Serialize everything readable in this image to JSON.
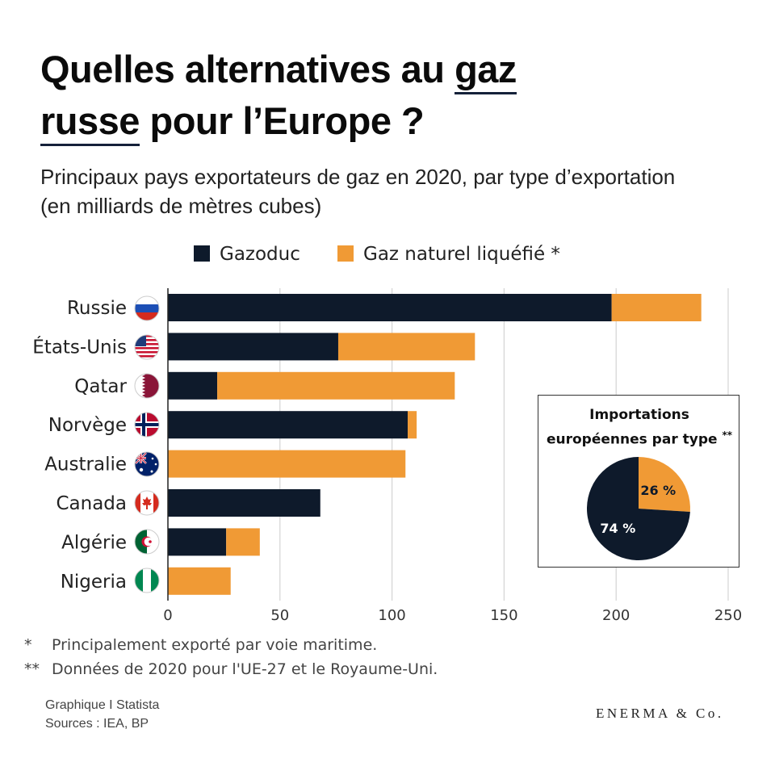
{
  "title": {
    "part1": "Quelles alternatives au ",
    "highlight1": "gaz",
    "highlight2": "russe",
    "part2": " pour l’Europe ?"
  },
  "subtitle": "Principaux pays exportateurs de gaz en 2020, par type d’exportation (en milliards de mètres cubes)",
  "chart_data": {
    "type": "bar",
    "orientation": "horizontal",
    "stacked": true,
    "categories": [
      "Russie",
      "États-Unis",
      "Qatar",
      "Norvège",
      "Australie",
      "Canada",
      "Algérie",
      "Nigeria"
    ],
    "series": [
      {
        "name": "Gazoduc",
        "color": "#0e1a2b",
        "values": [
          198,
          76,
          22,
          107,
          0,
          68,
          26,
          0
        ]
      },
      {
        "name": "Gaz naturel liquéfié *",
        "color": "#f09a35",
        "values": [
          40,
          61,
          106,
          4,
          106,
          0,
          15,
          28
        ]
      }
    ],
    "xlim": [
      0,
      250
    ],
    "xticks": [
      0,
      50,
      100,
      150,
      200,
      250
    ],
    "xlabel": "",
    "ylabel": "",
    "grid": "vertical",
    "legend": "top-center",
    "inset": {
      "type": "pie",
      "title": [
        "Importations",
        "européennes par type"
      ],
      "title_mark": "**",
      "slices": [
        {
          "label": "26 %",
          "value": 26,
          "color": "#f09a35"
        },
        {
          "label": "74 %",
          "value": 74,
          "color": "#0e1a2b"
        }
      ]
    }
  },
  "flags": [
    {
      "country": "Russie",
      "icon": "russia-flag-icon"
    },
    {
      "country": "États-Unis",
      "icon": "usa-flag-icon"
    },
    {
      "country": "Qatar",
      "icon": "qatar-flag-icon"
    },
    {
      "country": "Norvège",
      "icon": "norway-flag-icon"
    },
    {
      "country": "Australie",
      "icon": "australia-flag-icon"
    },
    {
      "country": "Canada",
      "icon": "canada-flag-icon"
    },
    {
      "country": "Algérie",
      "icon": "algeria-flag-icon"
    },
    {
      "country": "Nigeria",
      "icon": "nigeria-flag-icon"
    }
  ],
  "notes": {
    "note1_mark": "*",
    "note1": "Principalement exporté par voie maritime.",
    "note2_mark": "**",
    "note2": "Données de 2020 pour l'UE-27 et le Royaume-Uni."
  },
  "credit": {
    "line1": "Graphique I Statista",
    "line2": "Sources : IEA, BP"
  },
  "brand": "ENERMA & Co."
}
